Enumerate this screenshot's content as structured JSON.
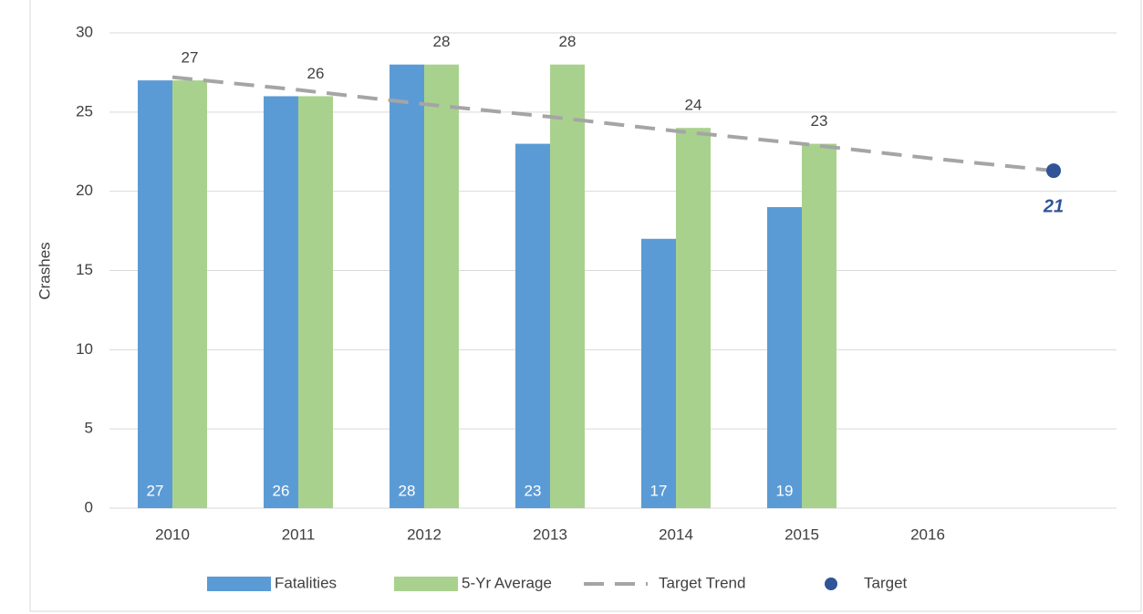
{
  "chart_data": {
    "type": "bar",
    "y_axis_label": "Crashes",
    "categories": [
      "2010",
      "2011",
      "2012",
      "2013",
      "2014",
      "2015",
      "2016",
      null
    ],
    "series": [
      {
        "name": "Fatalities",
        "type": "bar",
        "color": "#5b9bd5",
        "values": [
          27,
          26,
          28,
          23,
          17,
          19,
          null,
          null
        ]
      },
      {
        "name": "5-Yr Average",
        "type": "bar",
        "color": "#a9d18e",
        "values": [
          27,
          26,
          28,
          28,
          24,
          23,
          null,
          null
        ]
      },
      {
        "name": "Target Trend",
        "type": "line",
        "color": "#a5a5a5",
        "values": [
          27.2,
          26.4,
          25.5,
          24.7,
          23.8,
          23.0,
          22.1,
          21.3
        ]
      },
      {
        "name": "Target",
        "type": "scatter",
        "color": "#2f5597",
        "values": [
          null,
          null,
          null,
          null,
          null,
          null,
          null,
          21.3
        ],
        "value_labels": [
          null,
          null,
          null,
          null,
          null,
          null,
          null,
          "21"
        ]
      }
    ],
    "ylim": [
      0,
      30
    ],
    "yticks": [
      0,
      5,
      10,
      15,
      20,
      25,
      30
    ],
    "grid": true,
    "legend": "bottom"
  }
}
